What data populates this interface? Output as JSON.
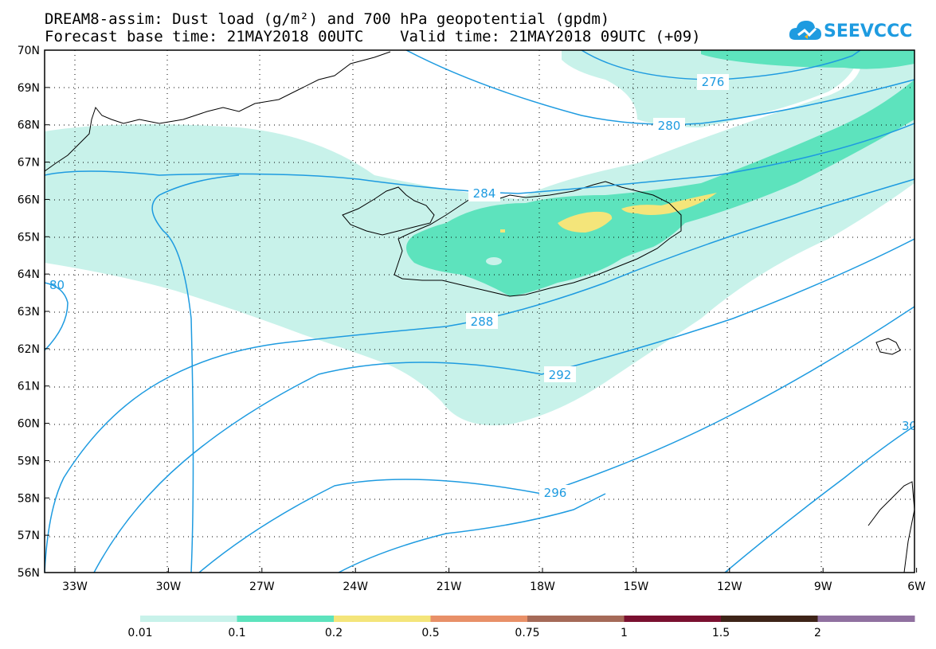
{
  "title": {
    "line1": "DREAM8-assim: Dust load (g/m²) and 700 hPa geopotential (gpdm)",
    "line2": "Forecast base time: 21MAY2018 00UTC    Valid time: 21MAY2018 09UTC (+09)"
  },
  "logo": {
    "text": "SEEVCCC",
    "icon": "cloud-icon"
  },
  "map": {
    "lat_labels": [
      "70N",
      "69N",
      "68N",
      "67N",
      "66N",
      "65N",
      "64N",
      "63N",
      "62N",
      "61N",
      "60N",
      "59N",
      "58N",
      "57N",
      "56N"
    ],
    "lon_labels": [
      "33W",
      "30W",
      "27W",
      "24W",
      "21W",
      "18W",
      "15W",
      "12W",
      "9W",
      "6W"
    ],
    "contour_labels": [
      "276",
      "280",
      "284",
      "288",
      "292",
      "296",
      "80",
      "30"
    ]
  },
  "legend": {
    "labels": [
      "0.01",
      "0.1",
      "0.2",
      "0.5",
      "0.75",
      "1",
      "1.5",
      "2"
    ],
    "colors": [
      "#c8f2ea",
      "#5de3bd",
      "#f4e57a",
      "#e89068",
      "#a56a58",
      "#7a1030",
      "#3e2418",
      "#9070a0"
    ]
  },
  "colors": {
    "contour": "#1e9be0",
    "coast": "#000000"
  }
}
